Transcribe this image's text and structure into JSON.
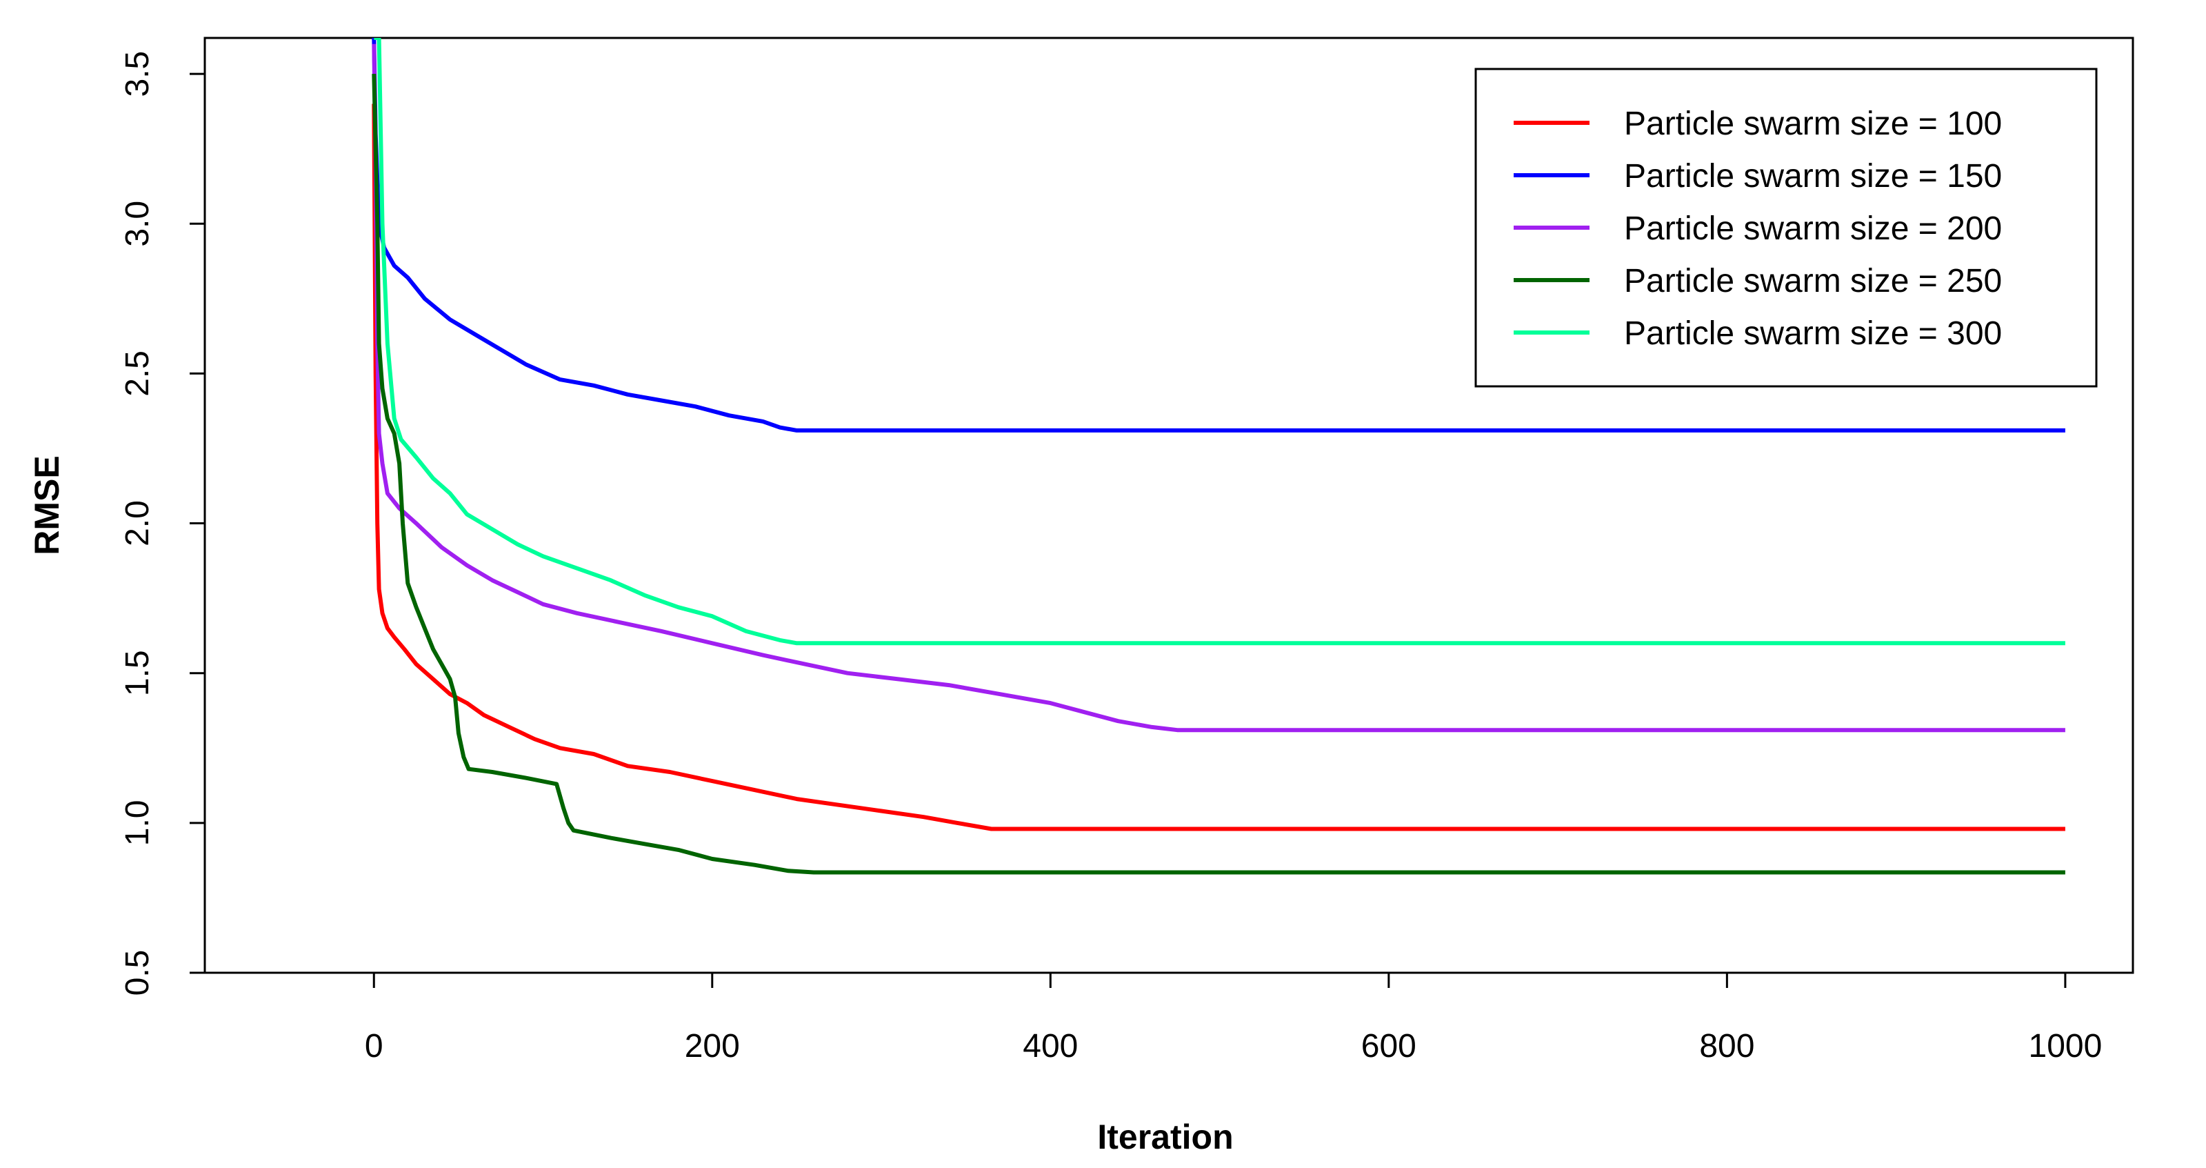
{
  "chart_data": {
    "type": "line",
    "title": "",
    "xlabel": "Iteration",
    "ylabel": "RMSE",
    "xlim": [
      -100,
      1040
    ],
    "ylim": [
      0.5,
      3.62
    ],
    "xticks": [
      0,
      200,
      400,
      600,
      800,
      1000
    ],
    "yticks": [
      0.5,
      1.0,
      1.5,
      2.0,
      2.5,
      3.0,
      3.5
    ],
    "xtick_labels": [
      "0",
      "200",
      "400",
      "600",
      "800",
      "1000"
    ],
    "ytick_labels": [
      "0.5",
      "1.0",
      "1.5",
      "2.0",
      "2.5",
      "3.0",
      "3.5"
    ],
    "grid": false,
    "legend_position": "top-right",
    "series": [
      {
        "name": "Particle swarm size = 100",
        "color": "#ff0000",
        "points": [
          [
            0,
            3.4
          ],
          [
            1,
            2.5
          ],
          [
            2,
            2.0
          ],
          [
            3,
            1.78
          ],
          [
            5,
            1.7
          ],
          [
            8,
            1.65
          ],
          [
            12,
            1.62
          ],
          [
            18,
            1.58
          ],
          [
            25,
            1.53
          ],
          [
            35,
            1.48
          ],
          [
            45,
            1.43
          ],
          [
            55,
            1.4
          ],
          [
            65,
            1.36
          ],
          [
            80,
            1.32
          ],
          [
            95,
            1.28
          ],
          [
            110,
            1.25
          ],
          [
            130,
            1.23
          ],
          [
            150,
            1.19
          ],
          [
            175,
            1.17
          ],
          [
            200,
            1.14
          ],
          [
            225,
            1.11
          ],
          [
            250,
            1.08
          ],
          [
            275,
            1.06
          ],
          [
            300,
            1.04
          ],
          [
            325,
            1.02
          ],
          [
            345,
            1.0
          ],
          [
            365,
            0.98
          ],
          [
            1000,
            0.98
          ]
        ]
      },
      {
        "name": "Particle swarm size = 150",
        "color": "#0000ff",
        "points": [
          [
            0,
            3.62
          ],
          [
            1,
            3.3
          ],
          [
            3,
            3.0
          ],
          [
            6,
            2.92
          ],
          [
            12,
            2.86
          ],
          [
            20,
            2.82
          ],
          [
            30,
            2.75
          ],
          [
            45,
            2.68
          ],
          [
            60,
            2.63
          ],
          [
            75,
            2.58
          ],
          [
            90,
            2.53
          ],
          [
            110,
            2.48
          ],
          [
            130,
            2.46
          ],
          [
            150,
            2.43
          ],
          [
            170,
            2.41
          ],
          [
            190,
            2.39
          ],
          [
            210,
            2.36
          ],
          [
            230,
            2.34
          ],
          [
            240,
            2.32
          ],
          [
            250,
            2.31
          ],
          [
            1000,
            2.31
          ]
        ]
      },
      {
        "name": "Particle swarm size = 200",
        "color": "#a020f0",
        "points": [
          [
            0,
            3.6
          ],
          [
            1,
            3.2
          ],
          [
            2,
            2.6
          ],
          [
            3,
            2.3
          ],
          [
            5,
            2.2
          ],
          [
            8,
            2.1
          ],
          [
            15,
            2.05
          ],
          [
            25,
            2.0
          ],
          [
            40,
            1.92
          ],
          [
            55,
            1.86
          ],
          [
            70,
            1.81
          ],
          [
            85,
            1.77
          ],
          [
            100,
            1.73
          ],
          [
            120,
            1.7
          ],
          [
            145,
            1.67
          ],
          [
            170,
            1.64
          ],
          [
            200,
            1.6
          ],
          [
            230,
            1.56
          ],
          [
            255,
            1.53
          ],
          [
            280,
            1.5
          ],
          [
            310,
            1.48
          ],
          [
            340,
            1.46
          ],
          [
            370,
            1.43
          ],
          [
            400,
            1.4
          ],
          [
            420,
            1.37
          ],
          [
            440,
            1.34
          ],
          [
            460,
            1.32
          ],
          [
            475,
            1.31
          ],
          [
            1000,
            1.31
          ]
        ]
      },
      {
        "name": "Particle swarm size = 250",
        "color": "#006400",
        "points": [
          [
            0,
            3.5
          ],
          [
            2,
            3.0
          ],
          [
            3,
            2.6
          ],
          [
            5,
            2.45
          ],
          [
            8,
            2.35
          ],
          [
            12,
            2.3
          ],
          [
            15,
            2.2
          ],
          [
            17,
            2.0
          ],
          [
            20,
            1.8
          ],
          [
            25,
            1.72
          ],
          [
            30,
            1.65
          ],
          [
            35,
            1.58
          ],
          [
            40,
            1.53
          ],
          [
            45,
            1.48
          ],
          [
            48,
            1.42
          ],
          [
            50,
            1.3
          ],
          [
            53,
            1.22
          ],
          [
            56,
            1.18
          ],
          [
            70,
            1.17
          ],
          [
            90,
            1.15
          ],
          [
            108,
            1.13
          ],
          [
            112,
            1.05
          ],
          [
            115,
            1.0
          ],
          [
            118,
            0.975
          ],
          [
            140,
            0.95
          ],
          [
            160,
            0.93
          ],
          [
            180,
            0.91
          ],
          [
            200,
            0.88
          ],
          [
            225,
            0.86
          ],
          [
            245,
            0.84
          ],
          [
            260,
            0.835
          ],
          [
            1000,
            0.835
          ]
        ]
      },
      {
        "name": "Particle swarm size = 300",
        "color": "#00ff99",
        "points": [
          [
            0,
            3.62
          ],
          [
            3,
            3.62
          ],
          [
            5,
            3.0
          ],
          [
            8,
            2.6
          ],
          [
            12,
            2.35
          ],
          [
            16,
            2.28
          ],
          [
            25,
            2.22
          ],
          [
            35,
            2.15
          ],
          [
            45,
            2.1
          ],
          [
            55,
            2.03
          ],
          [
            70,
            1.98
          ],
          [
            85,
            1.93
          ],
          [
            100,
            1.89
          ],
          [
            120,
            1.85
          ],
          [
            140,
            1.81
          ],
          [
            160,
            1.76
          ],
          [
            180,
            1.72
          ],
          [
            200,
            1.69
          ],
          [
            220,
            1.64
          ],
          [
            240,
            1.61
          ],
          [
            250,
            1.6
          ],
          [
            1000,
            1.6
          ]
        ]
      }
    ]
  }
}
